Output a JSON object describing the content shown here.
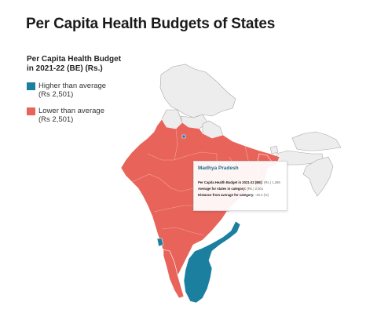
{
  "title": "Per Capita Health Budgets of States",
  "legend": {
    "title_line1": "Per Capita Health Budget",
    "title_line2": "in 2021-22 (BE) (Rs.)",
    "items": [
      {
        "label_line1": "Higher than average",
        "label_line2": "(Rs 2,501)",
        "color": "#1b7fa0"
      },
      {
        "label_line1": "Lower than average",
        "label_line2": "(Rs 2,501)",
        "color": "#e8645a"
      }
    ]
  },
  "colors": {
    "higher": "#1b7fa0",
    "lower": "#e8645a",
    "no_data": "#ededed",
    "border": "#ffffff",
    "no_data_border": "#a8a8a8"
  },
  "tooltip": {
    "state": "Madhya Pradesh",
    "row1_label": "Per Capita Health Budget in 2021-22 (BE):",
    "row1_value": "(Rs.) 1,369",
    "row2_label": "Average for states in category:",
    "row2_value": "(Rs.) 2,501",
    "row3_label": "Distance from average for category:",
    "row3_value": "-45.3 (%)"
  }
}
